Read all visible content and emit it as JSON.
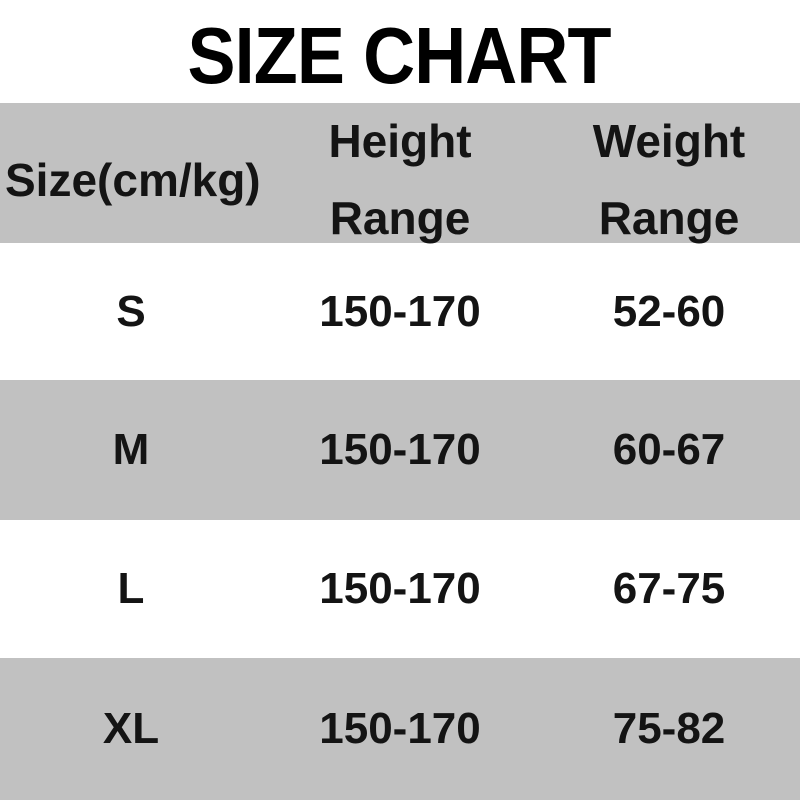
{
  "title": "SIZE CHART",
  "colors": {
    "band_gray": "#c1c1c1",
    "background": "#ffffff",
    "title_text": "#000000",
    "table_text": "#141414"
  },
  "table": {
    "header": {
      "col_size": "Size(cm/kg)",
      "col_height_line1": "Height",
      "col_height_line2": "Range",
      "col_weight_line1": "Weight",
      "col_weight_line2": "Range"
    },
    "rows": [
      {
        "size": "S",
        "height_range": "150-170",
        "weight_range": "52-60"
      },
      {
        "size": "M",
        "height_range": "150-170",
        "weight_range": "60-67"
      },
      {
        "size": "L",
        "height_range": "150-170",
        "weight_range": "67-75"
      },
      {
        "size": "XL",
        "height_range": "150-170",
        "weight_range": "75-82"
      }
    ]
  },
  "chart_data": {
    "type": "table",
    "title": "SIZE CHART",
    "columns": [
      "Size(cm/kg)",
      "Height Range",
      "Weight Range"
    ],
    "rows": [
      [
        "S",
        "150-170",
        "52-60"
      ],
      [
        "M",
        "150-170",
        "60-67"
      ],
      [
        "L",
        "150-170",
        "67-75"
      ],
      [
        "XL",
        "150-170",
        "75-82"
      ]
    ],
    "layout_hints": {
      "row_striping": "alternating white and gray starting with gray header",
      "column_alignment": [
        "center",
        "center",
        "center"
      ],
      "header_first_column_alignment": "left"
    }
  }
}
